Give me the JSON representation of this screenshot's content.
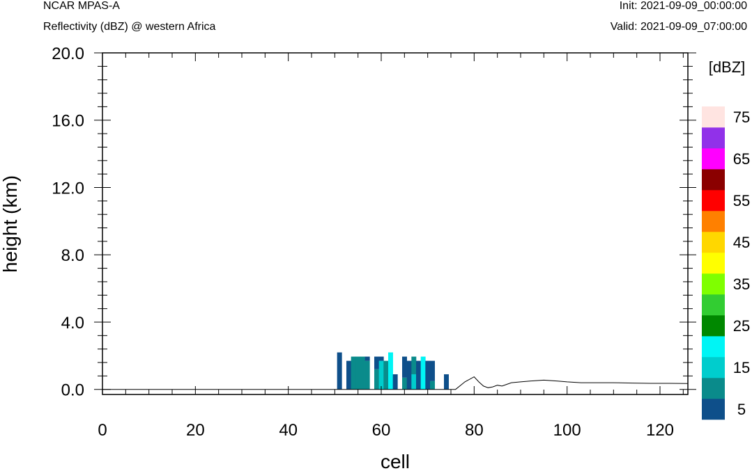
{
  "header": {
    "title_left": "NCAR MPAS-A",
    "subtitle_left": "Reflectivity (dBZ) @ western Africa",
    "init": "Init: 2021-09-09_00:00:00",
    "valid": "Valid: 2021-09-09_07:00:00"
  },
  "chart_data": {
    "type": "heatmap",
    "title": "Reflectivity (dBZ) @ western Africa",
    "xlabel": "cell",
    "ylabel": "height (km)",
    "xlim": [
      0,
      126
    ],
    "ylim": [
      -0.3,
      20.0
    ],
    "x_ticks": [
      0,
      20,
      40,
      60,
      80,
      100,
      120
    ],
    "x_tick_labels": [
      "0",
      "20",
      "40",
      "60",
      "80",
      "100",
      "120"
    ],
    "y_ticks": [
      0,
      4,
      8,
      12,
      16,
      20
    ],
    "y_tick_labels": [
      "0.0",
      "4.0",
      "8.0",
      "12.0",
      "16.0",
      "20.0"
    ],
    "colorbar": {
      "unit_label": "[dBZ]",
      "levels": [
        5,
        10,
        15,
        20,
        25,
        30,
        35,
        40,
        45,
        50,
        55,
        60,
        65,
        70,
        75
      ],
      "labels": [
        "5",
        "15",
        "25",
        "35",
        "45",
        "55",
        "65",
        "75"
      ],
      "colors": [
        "#0e4f8a",
        "#0a8b8b",
        "#00cdcd",
        "#00f5f5",
        "#008800",
        "#32cd32",
        "#7fff00",
        "#ffff00",
        "#ffd700",
        "#ff8000",
        "#ff0000",
        "#8b0000",
        "#ff00ff",
        "#9131e9",
        "#ffe4e1"
      ]
    },
    "cells": [
      {
        "x": 51,
        "y0": 0.0,
        "y1": 2.2,
        "dbz": 5
      },
      {
        "x": 53,
        "y0": 0.0,
        "y1": 1.7,
        "dbz": 5
      },
      {
        "x": 54,
        "y0": 0.0,
        "y1": 1.95,
        "dbz": 10
      },
      {
        "x": 55,
        "y0": 0.0,
        "y1": 1.95,
        "dbz": 10
      },
      {
        "x": 56,
        "y0": 0.0,
        "y1": 1.95,
        "dbz": 10
      },
      {
        "x": 57,
        "y0": 0.0,
        "y1": 1.7,
        "dbz": 10
      },
      {
        "x": 57,
        "y0": 1.7,
        "y1": 1.95,
        "dbz": 5
      },
      {
        "x": 59,
        "y0": 0.0,
        "y1": 1.2,
        "dbz": 10
      },
      {
        "x": 59,
        "y0": 1.2,
        "y1": 1.95,
        "dbz": 5
      },
      {
        "x": 60,
        "y0": 0.0,
        "y1": 1.7,
        "dbz": 15
      },
      {
        "x": 60,
        "y0": 1.7,
        "y1": 1.95,
        "dbz": 5
      },
      {
        "x": 61,
        "y0": 0.0,
        "y1": 1.7,
        "dbz": 10
      },
      {
        "x": 62,
        "y0": 0.0,
        "y1": 2.2,
        "dbz": 20
      },
      {
        "x": 63,
        "y0": 0.0,
        "y1": 0.9,
        "dbz": 5
      },
      {
        "x": 65,
        "y0": 0.0,
        "y1": 0.7,
        "dbz": 10
      },
      {
        "x": 65,
        "y0": 0.7,
        "y1": 1.95,
        "dbz": 5
      },
      {
        "x": 66,
        "y0": 0.0,
        "y1": 1.7,
        "dbz": 5
      },
      {
        "x": 67,
        "y0": 0.0,
        "y1": 0.9,
        "dbz": 15
      },
      {
        "x": 67,
        "y0": 0.9,
        "y1": 1.95,
        "dbz": 10
      },
      {
        "x": 68,
        "y0": 0.0,
        "y1": 1.7,
        "dbz": 5
      },
      {
        "x": 69,
        "y0": 0.0,
        "y1": 1.95,
        "dbz": 20
      },
      {
        "x": 70,
        "y0": 0.0,
        "y1": 1.7,
        "dbz": 5
      },
      {
        "x": 71,
        "y0": 0.0,
        "y1": 0.5,
        "dbz": 10
      },
      {
        "x": 71,
        "y0": 0.5,
        "y1": 1.7,
        "dbz": 5
      },
      {
        "x": 74,
        "y0": 0.0,
        "y1": 0.9,
        "dbz": 5
      }
    ],
    "terrain": {
      "x": [
        0,
        76,
        78,
        80,
        81,
        82,
        83,
        84,
        85,
        86,
        87,
        88,
        90,
        92,
        95,
        98,
        100,
        103,
        106,
        110,
        114,
        118,
        122,
        126
      ],
      "y": [
        0.0,
        0.0,
        0.45,
        0.75,
        0.45,
        0.2,
        0.1,
        0.15,
        0.25,
        0.2,
        0.3,
        0.4,
        0.45,
        0.5,
        0.55,
        0.5,
        0.45,
        0.4,
        0.4,
        0.4,
        0.38,
        0.36,
        0.36,
        0.35
      ]
    }
  }
}
